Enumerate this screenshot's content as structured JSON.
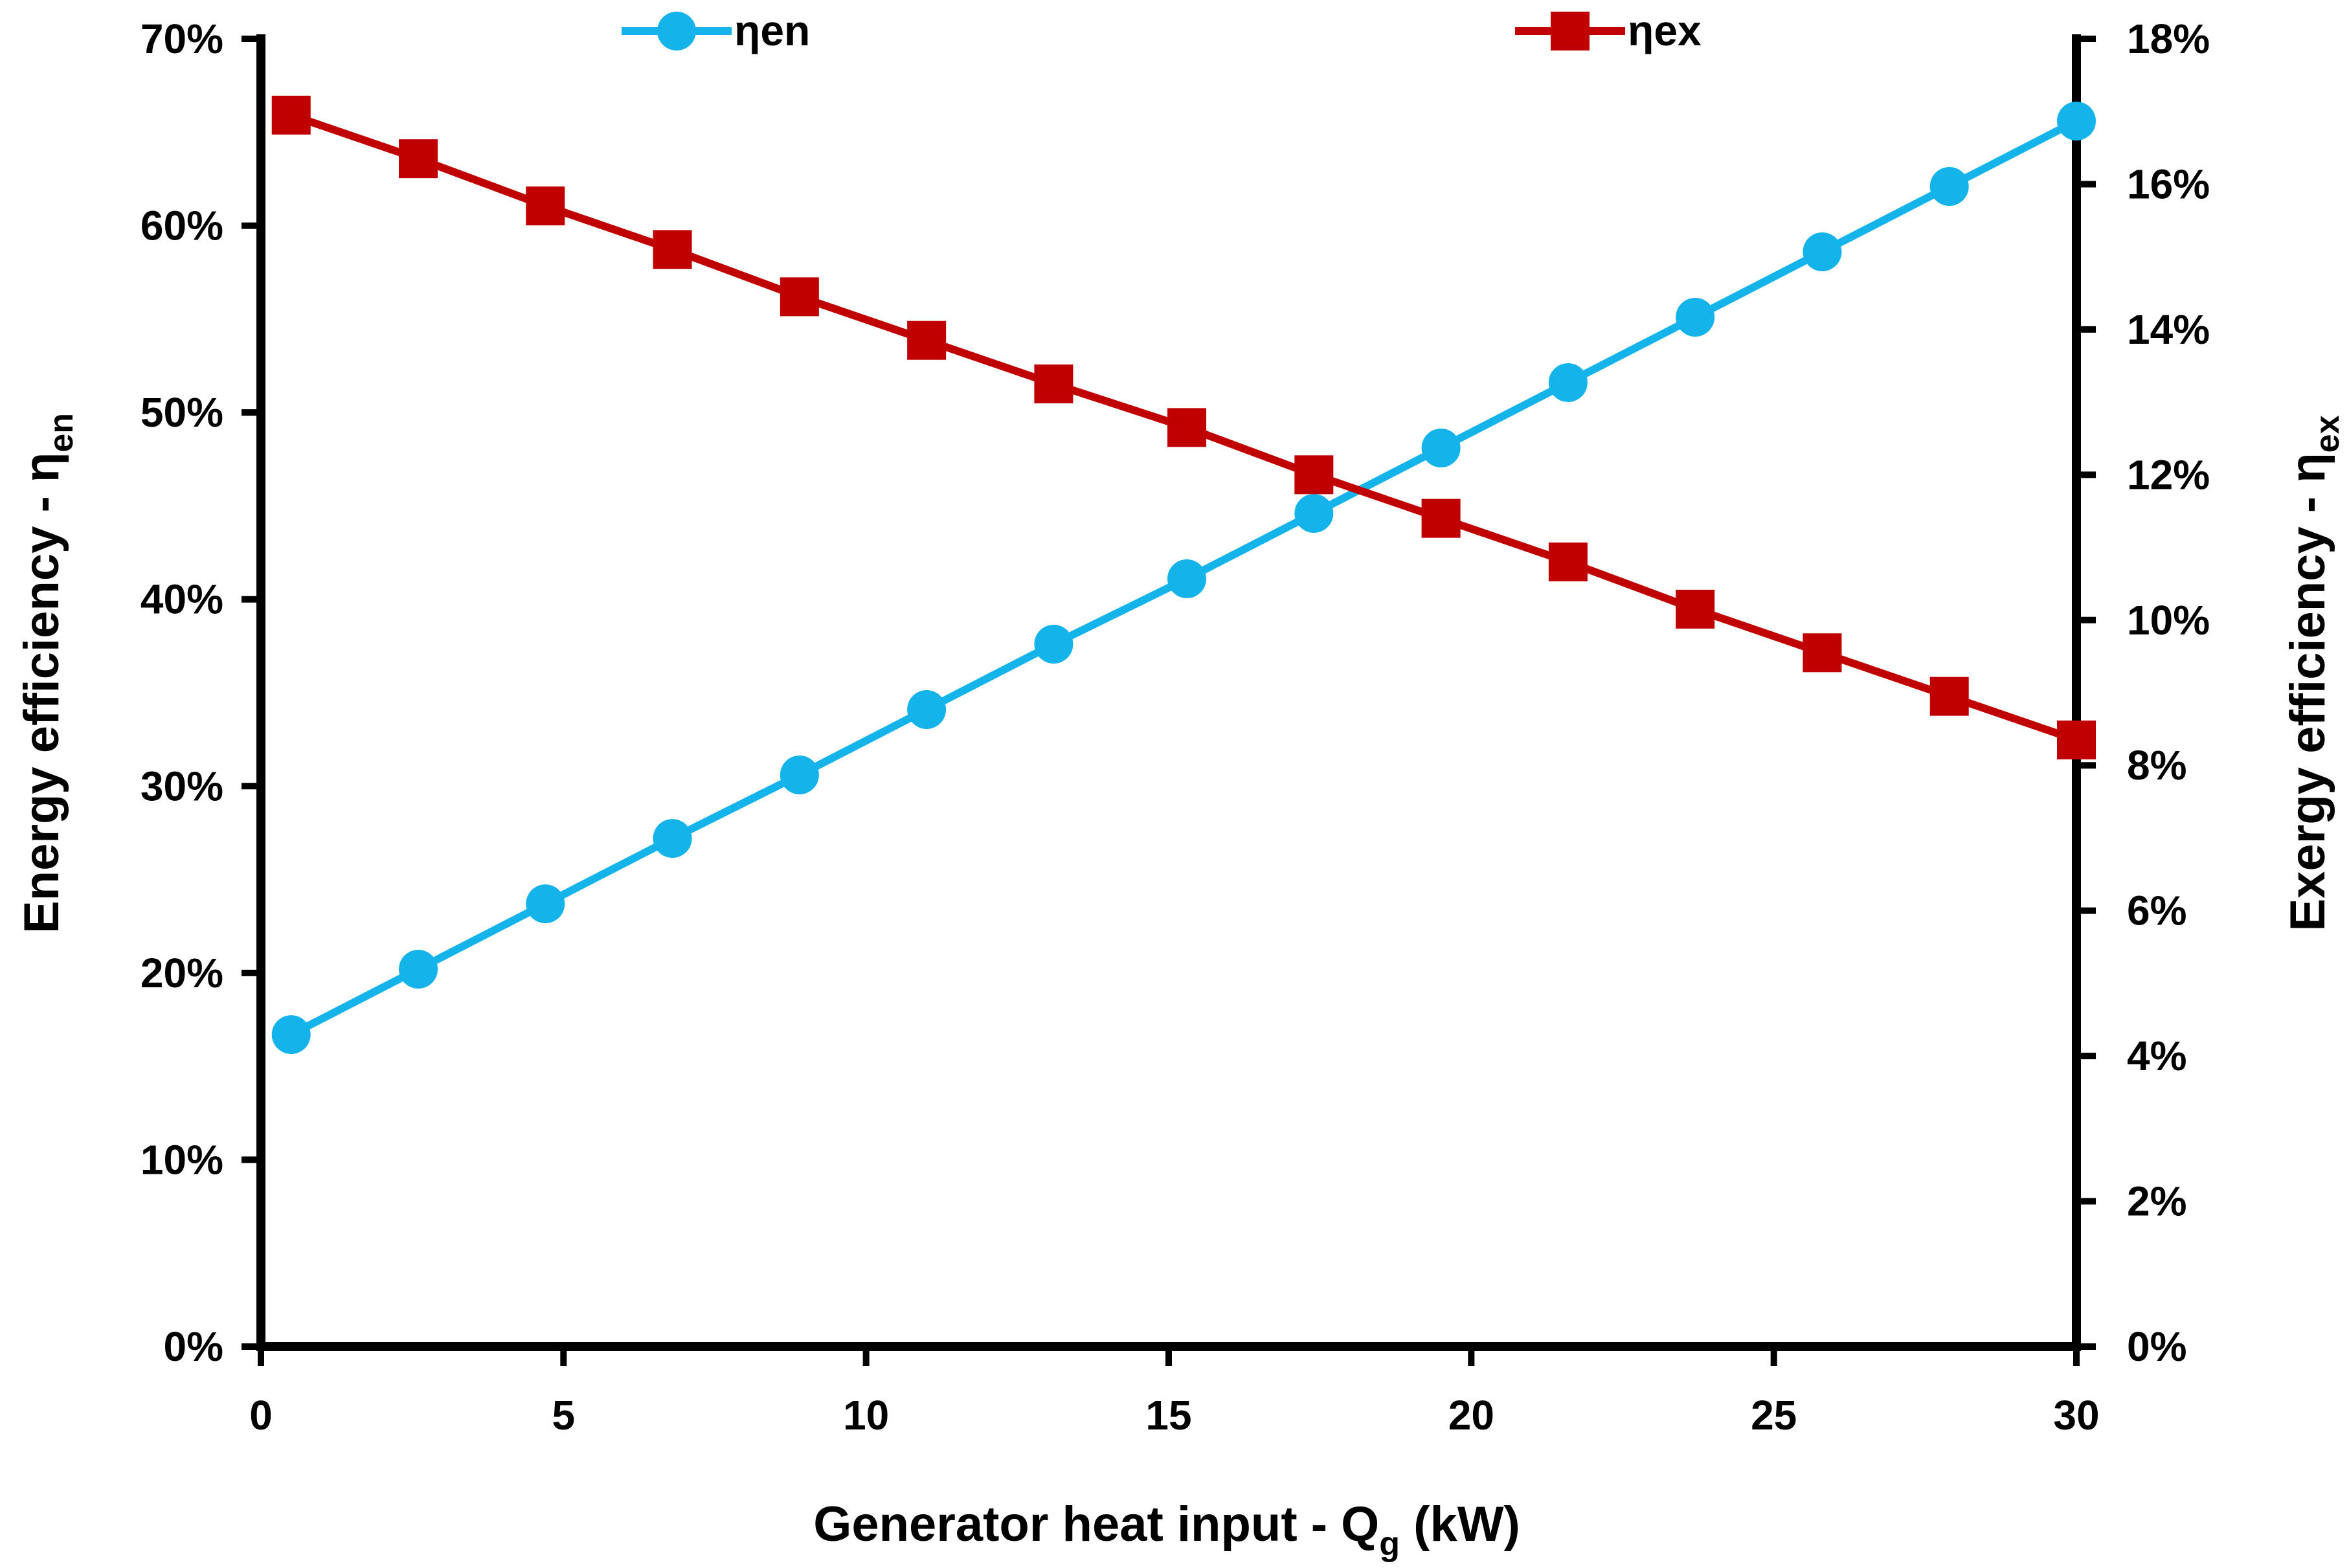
{
  "chart_data": {
    "type": "line",
    "title": "",
    "xlabel": "Generator heat input - Q",
    "xlabel_sub": "g",
    "xlabel_suffix": " (kW)",
    "ylabel_left": "Energy efficiency - η",
    "ylabel_left_sub": "en",
    "ylabel_right": "Exergy efficiency - η",
    "ylabel_right_sub": "ex",
    "xlim": [
      0,
      30
    ],
    "ylim_left": [
      0,
      70
    ],
    "ylim_right": [
      0,
      18
    ],
    "x_ticks": [
      "0",
      "5",
      "10",
      "15",
      "20",
      "25",
      "30"
    ],
    "x_tick_values": [
      0,
      5,
      10,
      15,
      20,
      25,
      30
    ],
    "y_left_ticks": [
      "0%",
      "10%",
      "20%",
      "30%",
      "40%",
      "50%",
      "60%",
      "70%"
    ],
    "y_left_tick_values": [
      0,
      10,
      20,
      30,
      40,
      50,
      60,
      70
    ],
    "y_right_ticks": [
      "0%",
      "2%",
      "4%",
      "6%",
      "8%",
      "10%",
      "12%",
      "14%",
      "16%",
      "18%"
    ],
    "y_right_tick_values": [
      0,
      2,
      4,
      6,
      8,
      10,
      12,
      14,
      16,
      18
    ],
    "grid": false,
    "legend_position": "top",
    "x": [
      0.5,
      2.6,
      4.7,
      6.8,
      8.9,
      11.0,
      13.1,
      15.3,
      17.4,
      19.5,
      21.6,
      23.7,
      25.8,
      27.9,
      30.0
    ],
    "series": [
      {
        "name": "ηen",
        "axis": "left",
        "color": "#14B4EB",
        "marker": "circle",
        "values": [
          16.7,
          20.2,
          23.7,
          27.2,
          30.6,
          34.1,
          37.6,
          41.1,
          44.6,
          48.1,
          51.6,
          55.1,
          58.6,
          62.1,
          65.6
        ]
      },
      {
        "name": "ηex",
        "axis": "right",
        "color": "#C00000",
        "marker": "square",
        "values": [
          16.95,
          16.35,
          15.7,
          15.1,
          14.45,
          13.85,
          13.25,
          12.65,
          12.0,
          11.4,
          10.8,
          10.15,
          9.55,
          8.95,
          8.35
        ]
      }
    ]
  }
}
